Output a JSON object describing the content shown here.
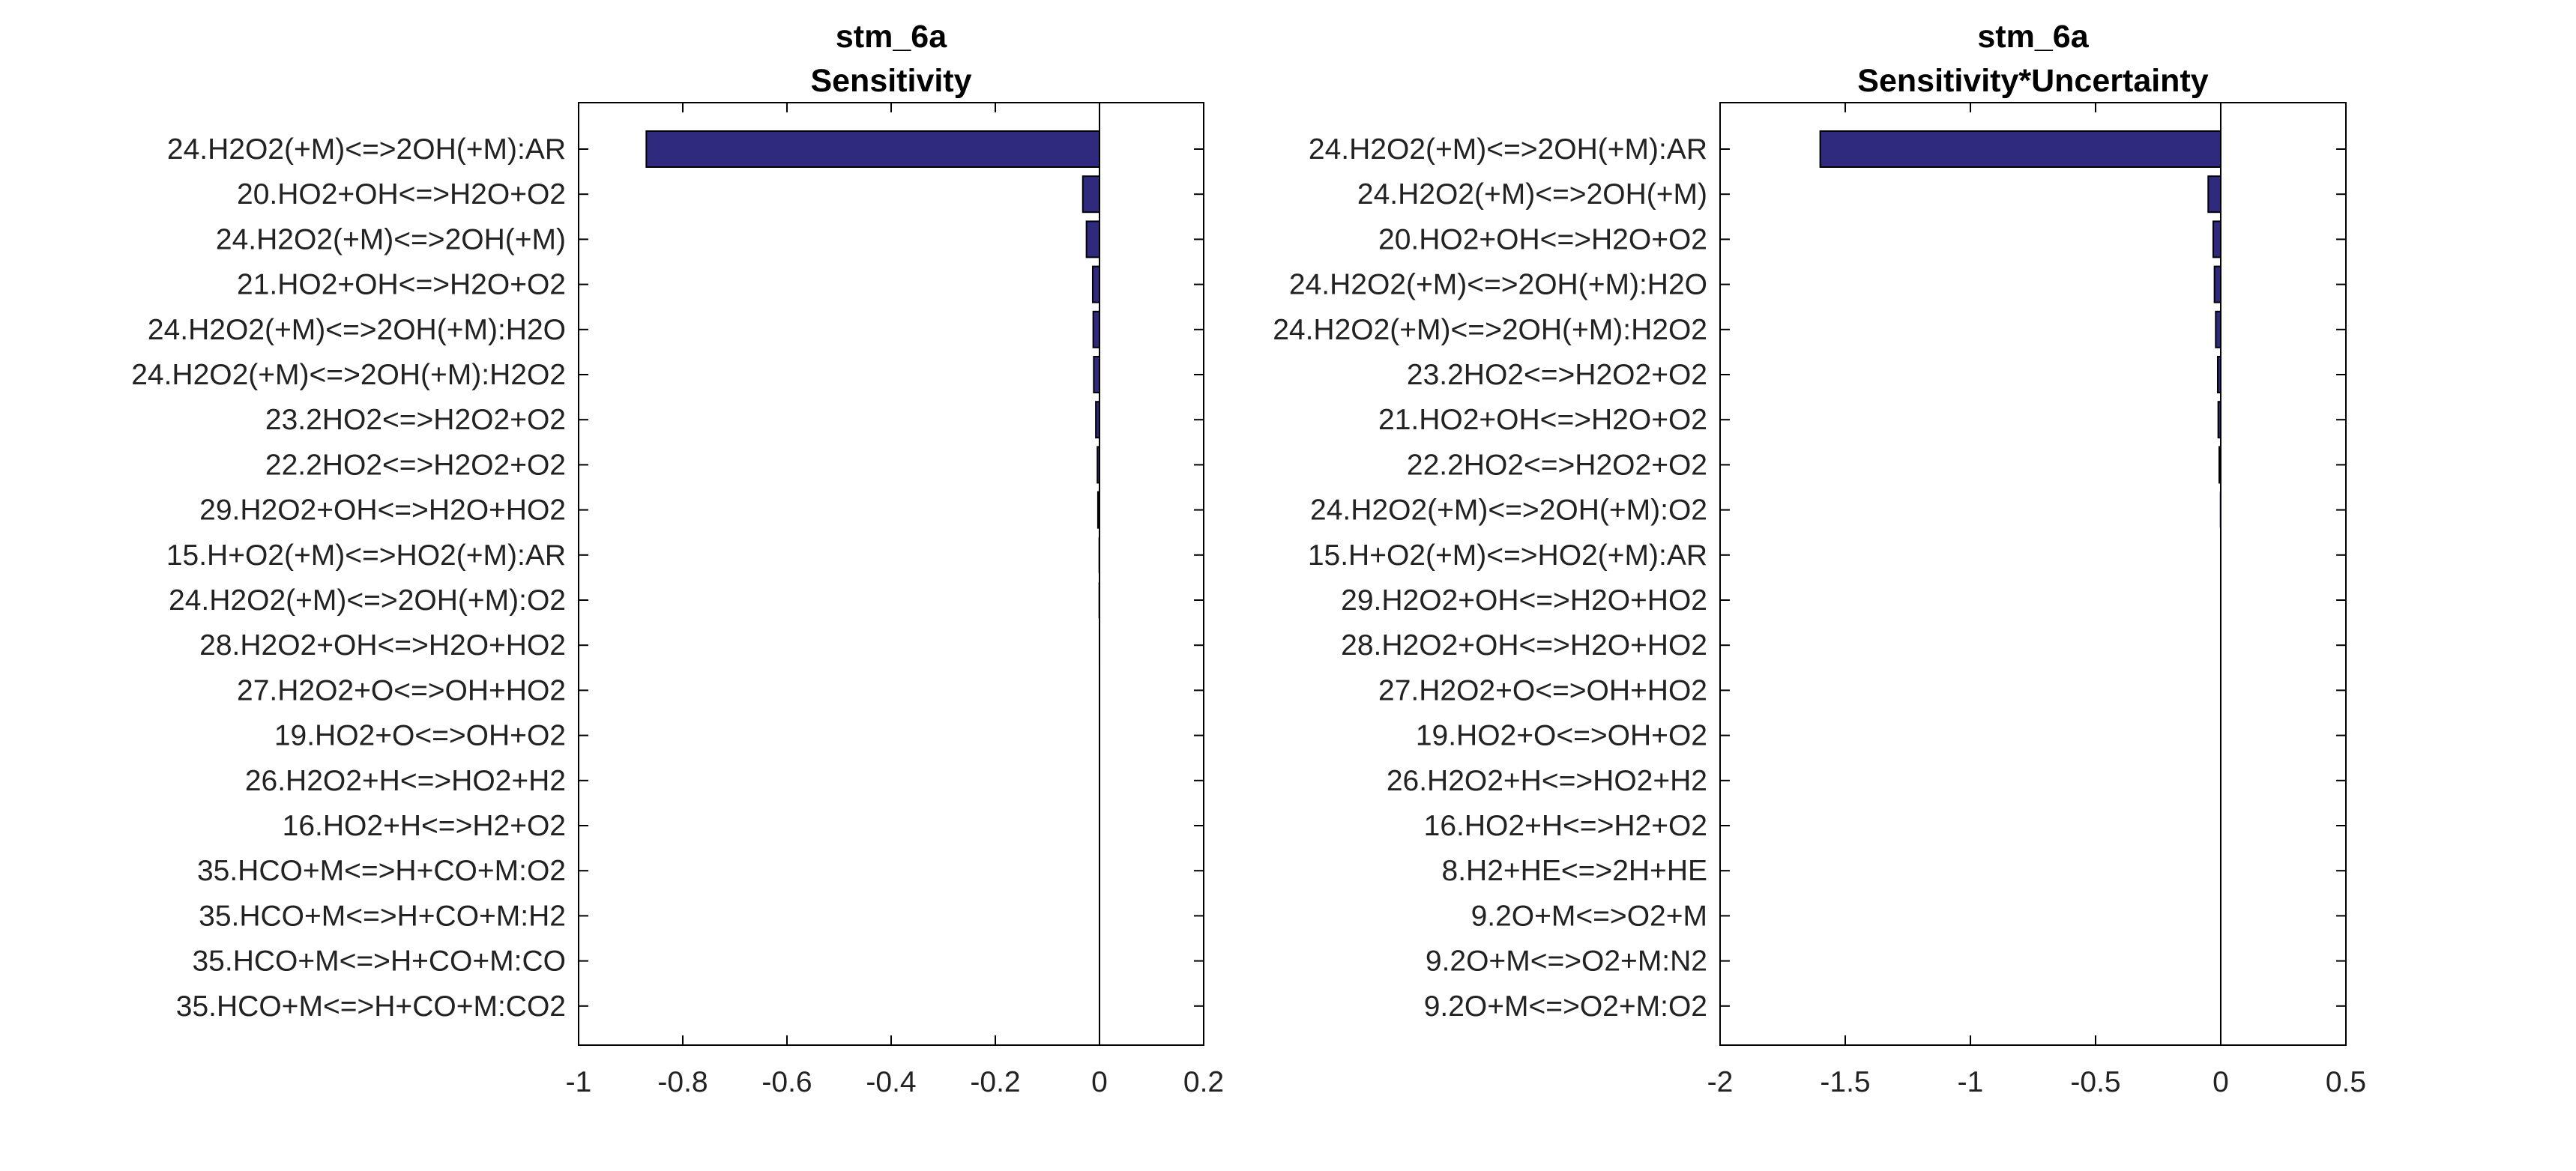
{
  "colors": {
    "bar": "#2f2a7e",
    "axis": "#000000",
    "text": "#222222"
  },
  "chart_data": [
    {
      "type": "bar",
      "orientation": "horizontal",
      "title": [
        "stm_6a",
        "Sensitivity"
      ],
      "categories": [
        "24.H2O2(+M)<=>2OH(+M):AR",
        "20.HO2+OH<=>H2O+O2",
        "24.H2O2(+M)<=>2OH(+M)",
        "21.HO2+OH<=>H2O+O2",
        "24.H2O2(+M)<=>2OH(+M):H2O",
        "24.H2O2(+M)<=>2OH(+M):H2O2",
        "23.2HO2<=>H2O2+O2",
        "22.2HO2<=>H2O2+O2",
        "29.H2O2+OH<=>H2O+HO2",
        "15.H+O2(+M)<=>HO2(+M):AR",
        "24.H2O2(+M)<=>2OH(+M):O2",
        "28.H2O2+OH<=>H2O+HO2",
        "27.H2O2+O<=>OH+HO2",
        "19.HO2+O<=>OH+O2",
        "26.H2O2+H<=>HO2+H2",
        "16.HO2+H<=>H2+O2",
        "35.HCO+M<=>H+CO+M:O2",
        "35.HCO+M<=>H+CO+M:H2",
        "35.HCO+M<=>H+CO+M:CO",
        "35.HCO+M<=>H+CO+M:CO2"
      ],
      "values": [
        -0.87,
        -0.032,
        -0.025,
        -0.013,
        -0.012,
        -0.011,
        -0.007,
        -0.004,
        -0.003,
        -0.002,
        -0.002,
        -0.0015,
        -0.0012,
        -0.001,
        -0.0008,
        -0.0006,
        -0.0004,
        -0.0003,
        -0.0002,
        -0.0001
      ],
      "xlim": [
        -1,
        0.2
      ],
      "xticks": [
        -1,
        -0.8,
        -0.6,
        -0.4,
        -0.2,
        0,
        0.2
      ],
      "xtick_labels": [
        "-1",
        "-0.8",
        "-0.6",
        "-0.4",
        "-0.2",
        "0",
        "0.2"
      ],
      "xlabel": "",
      "ylabel": ""
    },
    {
      "type": "bar",
      "orientation": "horizontal",
      "title": [
        "stm_6a",
        "Sensitivity*Uncertainty"
      ],
      "categories": [
        "24.H2O2(+M)<=>2OH(+M):AR",
        "24.H2O2(+M)<=>2OH(+M)",
        "20.HO2+OH<=>H2O+O2",
        "24.H2O2(+M)<=>2OH(+M):H2O",
        "24.H2O2(+M)<=>2OH(+M):H2O2",
        "23.2HO2<=>H2O2+O2",
        "21.HO2+OH<=>H2O+O2",
        "22.2HO2<=>H2O2+O2",
        "24.H2O2(+M)<=>2OH(+M):O2",
        "15.H+O2(+M)<=>HO2(+M):AR",
        "29.H2O2+OH<=>H2O+HO2",
        "28.H2O2+OH<=>H2O+HO2",
        "27.H2O2+O<=>OH+HO2",
        "19.HO2+O<=>OH+O2",
        "26.H2O2+H<=>HO2+H2",
        "16.HO2+H<=>H2+O2",
        "8.H2+HE<=>2H+HE",
        "9.2O+M<=>O2+M",
        "9.2O+M<=>O2+M:N2",
        "9.2O+M<=>O2+M:O2"
      ],
      "values": [
        -1.6,
        -0.05,
        -0.03,
        -0.025,
        -0.02,
        -0.012,
        -0.01,
        -0.006,
        -0.004,
        -0.003,
        -0.002,
        -0.0015,
        -0.0012,
        -0.001,
        -0.0008,
        -0.0006,
        -0.0004,
        -0.0003,
        -0.0002,
        -0.0001
      ],
      "xlim": [
        -2,
        0.5
      ],
      "xticks": [
        -2,
        -1.5,
        -1,
        -0.5,
        0,
        0.5
      ],
      "xtick_labels": [
        "-2",
        "-1.5",
        "-1",
        "-0.5",
        "0",
        "0.5"
      ],
      "xlabel": "",
      "ylabel": ""
    }
  ]
}
